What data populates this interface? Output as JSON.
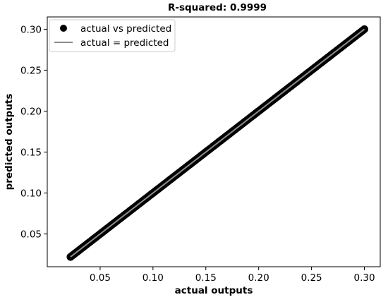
{
  "chart_data": {
    "type": "scatter",
    "title": "R-squared: 0.9999",
    "xlabel": "actual outputs",
    "ylabel": "predicted outputs",
    "xlim": [
      0.0,
      0.315
    ],
    "ylim": [
      0.01,
      0.315
    ],
    "xticks": [
      "0.05",
      "0.10",
      "0.15",
      "0.20",
      "0.25",
      "0.30"
    ],
    "yticks": [
      "0.05",
      "0.10",
      "0.15",
      "0.20",
      "0.25",
      "0.30"
    ],
    "grid": false,
    "legend_position": "top-left",
    "series": [
      {
        "name": "actual vs predicted",
        "kind": "scatter",
        "color": "#000000",
        "x_range": [
          0.022,
          0.3
        ],
        "y_range": [
          0.022,
          0.3
        ]
      },
      {
        "name": "actual = predicted",
        "kind": "line",
        "color": "#8c8c8c",
        "x": [
          0.022,
          0.3
        ],
        "y": [
          0.022,
          0.3
        ]
      }
    ]
  }
}
